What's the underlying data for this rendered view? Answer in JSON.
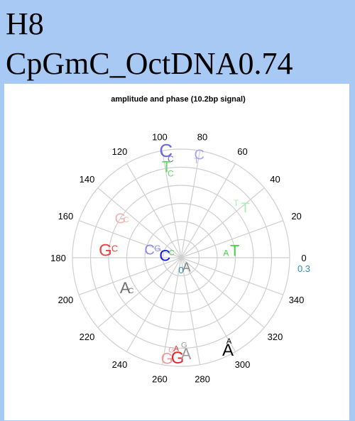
{
  "header": {
    "line1": "H8",
    "line2": "CpGmC_OctDNA0.74",
    "background": "#a9c9f5"
  },
  "chart_data": {
    "type": "polar-letters",
    "title": "amplitude and phase (10.2bp signal)",
    "angle_ticks": [
      "0",
      "20",
      "40",
      "60",
      "80",
      "100",
      "120",
      "140",
      "160",
      "180",
      "200",
      "220",
      "240",
      "260",
      "280",
      "300",
      "320",
      "340"
    ],
    "angle_tick_values": [
      0,
      20,
      40,
      60,
      80,
      100,
      120,
      140,
      160,
      180,
      200,
      220,
      240,
      260,
      280,
      300,
      320,
      340
    ],
    "radial_ticks": [
      {
        "label": "0",
        "r": 0,
        "angle": 270,
        "color": "#2a8fb0"
      },
      {
        "label": "0.3",
        "r": 0.3,
        "angle": 0,
        "color": "#2a8fb0"
      }
    ],
    "rmax": 0.3,
    "grid": true,
    "rings": 6,
    "spokes_deg": 20,
    "letters": [
      {
        "text": "C",
        "angle": 98,
        "r": 0.3,
        "size": 26,
        "color": "#6b6bd6"
      },
      {
        "text": "C",
        "angle": 96,
        "r": 0.275,
        "size": 12,
        "color": "#6b6bd6"
      },
      {
        "text": "C",
        "angle": 80,
        "r": 0.29,
        "size": 20,
        "color": "#a6a6ec"
      },
      {
        "text": "T",
        "angle": 81,
        "r": 0.272,
        "size": 11,
        "color": "#a6a6ec"
      },
      {
        "text": "T",
        "angle": 99,
        "r": 0.255,
        "size": 22,
        "color": "#66d466"
      },
      {
        "text": "C",
        "angle": 97,
        "r": 0.235,
        "size": 12,
        "color": "#66d466"
      },
      {
        "text": "T",
        "angle": 38,
        "r": 0.225,
        "size": 20,
        "color": "#b2ecb2"
      },
      {
        "text": "T",
        "angle": 45,
        "r": 0.215,
        "size": 12,
        "color": "#b2ecb2"
      },
      {
        "text": "G",
        "angle": 147,
        "r": 0.2,
        "size": 20,
        "color": "#f2b2b2"
      },
      {
        "text": "C",
        "angle": 145,
        "r": 0.185,
        "size": 11,
        "color": "#f2b2b2"
      },
      {
        "text": "C",
        "angle": 165,
        "r": 0.09,
        "size": 20,
        "color": "#8a8ae6"
      },
      {
        "text": "G",
        "angle": 158,
        "r": 0.07,
        "size": 12,
        "color": "#8a8ae6"
      },
      {
        "text": "C",
        "angle": 172,
        "r": 0.045,
        "size": 22,
        "color": "#1414e0"
      },
      {
        "text": "C",
        "angle": 150,
        "r": 0.03,
        "size": 11,
        "color": "#55cc55"
      },
      {
        "text": "G",
        "angle": 174,
        "r": 0.21,
        "size": 24,
        "color": "#e64646"
      },
      {
        "text": "C",
        "angle": 172,
        "r": 0.185,
        "size": 13,
        "color": "#e64646"
      },
      {
        "text": "T",
        "angle": 8,
        "r": 0.15,
        "size": 22,
        "color": "#3fd63f"
      },
      {
        "text": "A",
        "angle": 6,
        "r": 0.125,
        "size": 12,
        "color": "#3fd63f"
      },
      {
        "text": "A",
        "angle": 300,
        "r": 0.03,
        "size": 18,
        "color": "#888888"
      },
      {
        "text": "A",
        "angle": 208,
        "r": 0.175,
        "size": 22,
        "color": "#707070"
      },
      {
        "text": "C",
        "angle": 213,
        "r": 0.165,
        "size": 11,
        "color": "#707070"
      },
      {
        "text": "G",
        "angle": 262,
        "r": 0.28,
        "size": 22,
        "color": "#f09a9a"
      },
      {
        "text": "G",
        "angle": 264,
        "r": 0.255,
        "size": 11,
        "color": "#f09a9a"
      },
      {
        "text": "G",
        "angle": 268,
        "r": 0.275,
        "size": 24,
        "color": "#e02828"
      },
      {
        "text": "A",
        "angle": 267,
        "r": 0.25,
        "size": 11,
        "color": "#e02828"
      },
      {
        "text": "A",
        "angle": 273,
        "r": 0.265,
        "size": 22,
        "color": "#9a9a9a"
      },
      {
        "text": "G",
        "angle": 272,
        "r": 0.24,
        "size": 11,
        "color": "#9a9a9a"
      },
      {
        "text": "A",
        "angle": 297,
        "r": 0.285,
        "size": 24,
        "color": "#000000"
      },
      {
        "text": "A",
        "angle": 300,
        "r": 0.265,
        "size": 11,
        "color": "#000000"
      }
    ]
  }
}
